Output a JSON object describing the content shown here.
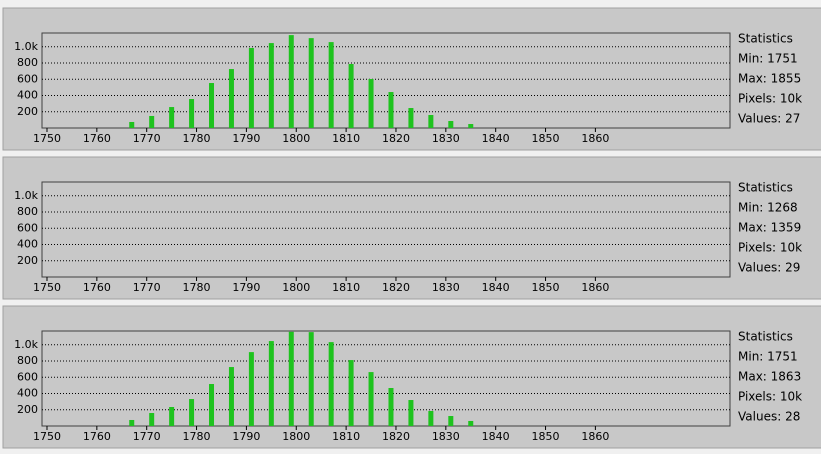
{
  "chart_data": [
    {
      "type": "bar",
      "color": "#1ec31e",
      "grid": true,
      "stats": [
        "Statistics",
        "Min: 1751",
        "Max: 1855",
        "Pixels: 10k",
        "Values: 27"
      ],
      "x": [
        1767,
        1771,
        1775,
        1779,
        1783,
        1787,
        1791,
        1795,
        1799,
        1803,
        1807,
        1811,
        1815,
        1819,
        1823,
        1827,
        1831,
        1835
      ],
      "values": [
        74,
        148,
        258,
        357,
        554,
        726,
        985,
        1046,
        1144,
        1107,
        1058,
        788,
        603,
        443,
        246,
        160,
        86,
        49
      ],
      "xlim": [
        1749,
        1887
      ],
      "xticks": [
        1750,
        1760,
        1770,
        1780,
        1790,
        1800,
        1810,
        1820,
        1830,
        1840,
        1850,
        1860
      ],
      "ylim": [
        0,
        1170
      ],
      "yticks": [
        200,
        400,
        600,
        800,
        {
          "value": 1000,
          "label": "1.0k"
        }
      ]
    },
    {
      "type": "bar",
      "color": "#1ec31e",
      "grid": true,
      "stats": [
        "Statistics",
        "Min: 1268",
        "Max: 1359",
        "Pixels: 10k",
        "Values: 29"
      ],
      "x": [],
      "values": [],
      "xlim": [
        1749,
        1887
      ],
      "xticks": [
        1750,
        1760,
        1770,
        1780,
        1790,
        1800,
        1810,
        1820,
        1830,
        1840,
        1850,
        1860
      ],
      "ylim": [
        0,
        1170
      ],
      "yticks": [
        200,
        400,
        600,
        800,
        {
          "value": 1000,
          "label": "1.0k"
        }
      ]
    },
    {
      "type": "bar",
      "color": "#1ec31e",
      "grid": true,
      "stats": [
        "Statistics",
        "Min: 1751",
        "Max: 1863",
        "Pixels: 10k",
        "Values: 28"
      ],
      "x": [
        1767,
        1771,
        1775,
        1779,
        1783,
        1787,
        1791,
        1795,
        1799,
        1803,
        1807,
        1811,
        1815,
        1819,
        1823,
        1827,
        1831,
        1835
      ],
      "values": [
        74,
        160,
        234,
        332,
        517,
        726,
        910,
        1046,
        1160,
        1156,
        1033,
        812,
        664,
        468,
        320,
        185,
        123,
        62
      ],
      "xlim": [
        1749,
        1887
      ],
      "xticks": [
        1750,
        1760,
        1770,
        1780,
        1790,
        1800,
        1810,
        1820,
        1830,
        1840,
        1850,
        1860
      ],
      "ylim": [
        0,
        1170
      ],
      "yticks": [
        200,
        400,
        600,
        800,
        {
          "value": 1000,
          "label": "1.0k"
        }
      ]
    }
  ]
}
